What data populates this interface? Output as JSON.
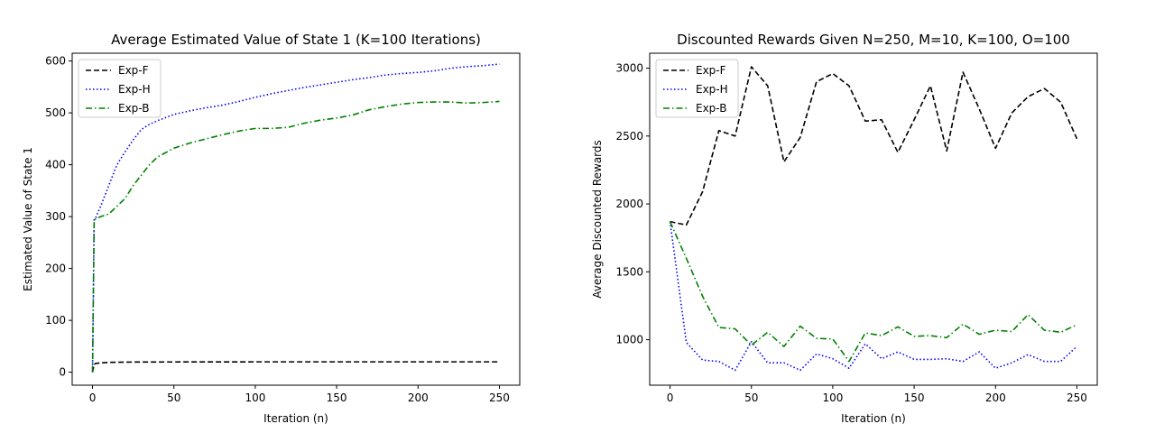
{
  "chart_data": [
    {
      "type": "line",
      "title": "Average Estimated Value of State 1 (K=100 Iterations)",
      "xlabel": "Iteration (n)",
      "ylabel": "Estimated Value of State 1",
      "xlim": [
        -12.5,
        262.5
      ],
      "ylim": [
        -25,
        615
      ],
      "xticks": [
        0,
        50,
        100,
        150,
        200,
        250
      ],
      "yticks": [
        0,
        100,
        200,
        300,
        400,
        500,
        600
      ],
      "grid": false,
      "legend_position": "top-left",
      "series": [
        {
          "name": "Exp-F",
          "color": "#000000",
          "style": "dashed",
          "x": [
            0,
            1,
            2,
            5,
            10,
            20,
            30,
            50,
            100,
            150,
            200,
            250
          ],
          "y": [
            0,
            15,
            17,
            18,
            19,
            19.5,
            19.7,
            19.8,
            20,
            20,
            20,
            20
          ]
        },
        {
          "name": "Exp-H",
          "color": "#0000ff",
          "style": "dotted",
          "x": [
            0,
            1,
            2,
            5,
            10,
            15,
            20,
            25,
            30,
            35,
            40,
            50,
            60,
            70,
            80,
            90,
            100,
            110,
            120,
            130,
            140,
            150,
            160,
            170,
            180,
            190,
            200,
            210,
            220,
            230,
            240,
            250
          ],
          "y": [
            0,
            295,
            298,
            320,
            360,
            400,
            425,
            448,
            468,
            478,
            485,
            497,
            504,
            510,
            515,
            522,
            530,
            537,
            543,
            549,
            554,
            559,
            564,
            568,
            573,
            576,
            578,
            581,
            586,
            589,
            591,
            594
          ]
        },
        {
          "name": "Exp-B",
          "color": "#008000",
          "style": "dashdot",
          "x": [
            0,
            1,
            2,
            5,
            10,
            15,
            20,
            25,
            30,
            35,
            40,
            50,
            60,
            70,
            80,
            90,
            100,
            110,
            120,
            130,
            140,
            150,
            160,
            170,
            180,
            190,
            200,
            210,
            220,
            230,
            240,
            250
          ],
          "y": [
            0,
            293,
            296,
            300,
            305,
            320,
            335,
            360,
            380,
            400,
            415,
            432,
            442,
            450,
            458,
            465,
            470,
            470,
            472,
            480,
            486,
            490,
            496,
            506,
            512,
            517,
            520,
            521,
            521,
            519,
            520,
            522
          ]
        }
      ]
    },
    {
      "type": "line",
      "title": "Discounted Rewards Given N=250, M=10, K=100, O=100",
      "xlabel": "Iteration (n)",
      "ylabel": "Average Discounted Rewards",
      "xlim": [
        -12.5,
        262.5
      ],
      "ylim": [
        665,
        3110
      ],
      "xticks": [
        0,
        50,
        100,
        150,
        200,
        250
      ],
      "yticks": [
        1000,
        1500,
        2000,
        2500,
        3000
      ],
      "grid": false,
      "legend_position": "top-left",
      "series": [
        {
          "name": "Exp-F",
          "color": "#000000",
          "style": "dashed",
          "x": [
            0,
            10,
            20,
            30,
            40,
            50,
            60,
            70,
            80,
            90,
            100,
            110,
            120,
            130,
            140,
            150,
            160,
            170,
            180,
            190,
            200,
            210,
            220,
            230,
            240,
            250
          ],
          "y": [
            1870,
            1845,
            2090,
            2540,
            2500,
            3010,
            2870,
            2310,
            2490,
            2900,
            2960,
            2870,
            2610,
            2620,
            2380,
            2620,
            2870,
            2390,
            2970,
            2700,
            2410,
            2670,
            2790,
            2850,
            2750,
            2480
          ]
        },
        {
          "name": "Exp-H",
          "color": "#0000ff",
          "style": "dotted",
          "x": [
            0,
            10,
            20,
            30,
            40,
            50,
            60,
            70,
            80,
            90,
            100,
            110,
            120,
            130,
            140,
            150,
            160,
            170,
            180,
            190,
            200,
            210,
            220,
            230,
            240,
            250
          ],
          "y": [
            1870,
            980,
            850,
            840,
            775,
            985,
            830,
            830,
            775,
            895,
            860,
            790,
            970,
            860,
            910,
            855,
            855,
            860,
            840,
            910,
            790,
            830,
            890,
            840,
            840,
            950
          ]
        },
        {
          "name": "Exp-B",
          "color": "#008000",
          "style": "dashdot",
          "x": [
            0,
            10,
            20,
            30,
            40,
            50,
            60,
            70,
            80,
            90,
            100,
            110,
            120,
            130,
            140,
            150,
            160,
            170,
            180,
            190,
            200,
            210,
            220,
            230,
            240,
            250
          ],
          "y": [
            1870,
            1600,
            1320,
            1090,
            1080,
            960,
            1055,
            950,
            1100,
            1010,
            1005,
            840,
            1050,
            1030,
            1095,
            1025,
            1030,
            1015,
            1115,
            1040,
            1070,
            1060,
            1185,
            1070,
            1055,
            1110
          ]
        }
      ]
    }
  ]
}
